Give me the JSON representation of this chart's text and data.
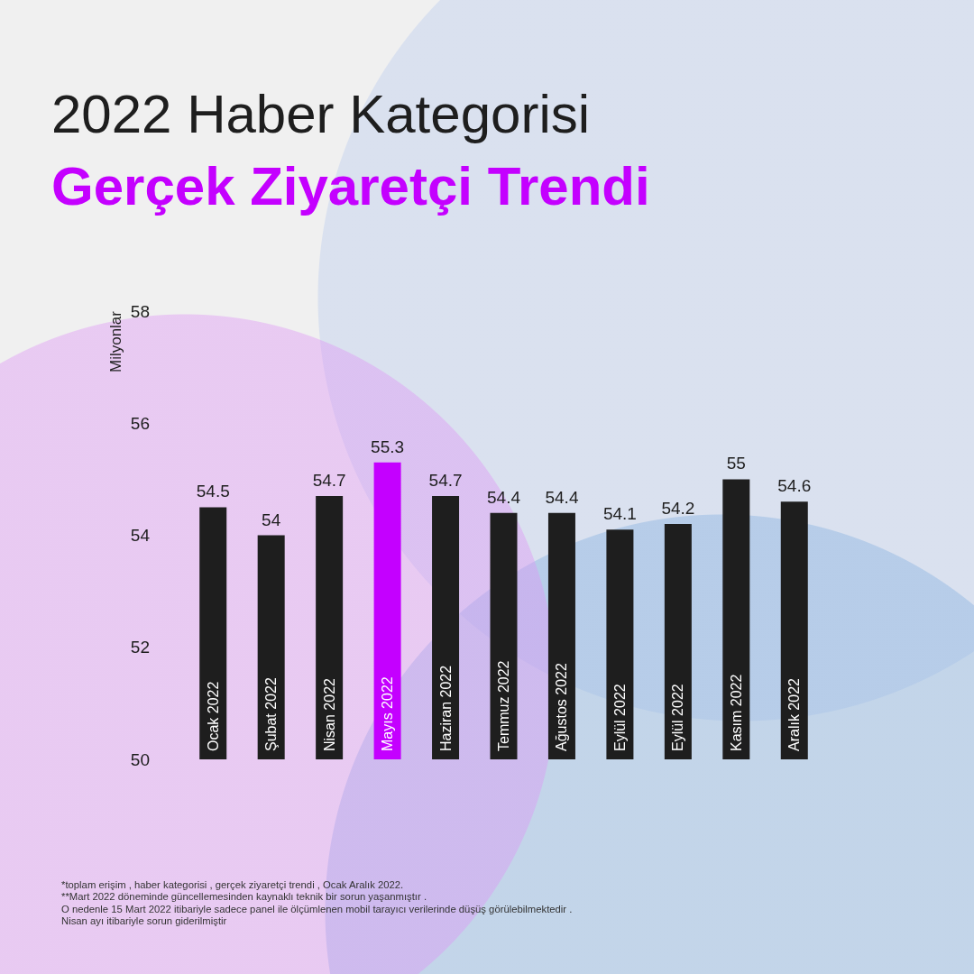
{
  "chart_data": {
    "type": "bar",
    "title": "2022 Haber Kategorisi",
    "subtitle": "Gerçek Ziyaretçi Trendi",
    "ylabel": "Milyonlar",
    "categories": [
      "Ocak 2022",
      "Şubat 2022",
      "Nisan 2022",
      "Mayıs 2022",
      "Haziran 2022",
      "Temmuz 2022",
      "Ağustos 2022",
      "Eylül 2022",
      "Eylül 2022",
      "Kasım 2022",
      "Aralık 2022"
    ],
    "values": [
      54.5,
      54,
      54.7,
      55.3,
      54.7,
      54.4,
      54.4,
      54.1,
      54.2,
      55,
      54.6
    ],
    "colors": [
      "#1e1e1e",
      "#1e1e1e",
      "#1e1e1e",
      "#c400ff",
      "#1e1e1e",
      "#1e1e1e",
      "#1e1e1e",
      "#1e1e1e",
      "#1e1e1e",
      "#1e1e1e",
      "#1e1e1e"
    ],
    "ylim": [
      50,
      58
    ],
    "yticks": [
      50,
      52,
      54,
      56,
      58
    ],
    "data_labels": true,
    "grid": false,
    "annotations": [
      "*toplam erişim , haber kategorisi , gerçek ziyaretçi trendi , Ocak Aralık 2022.",
      "**Mart 2022 döneminde güncellemesinden kaynaklı teknik bir sorun yaşanmıştır .",
      "O nedenle 15 Mart 2022 itibariyle sadece panel ile ölçümlenen mobil tarayıcı verilerinde düşüş görülebilmektedir .",
      "Nisan ayı itibariyle sorun giderilmiştir"
    ]
  }
}
